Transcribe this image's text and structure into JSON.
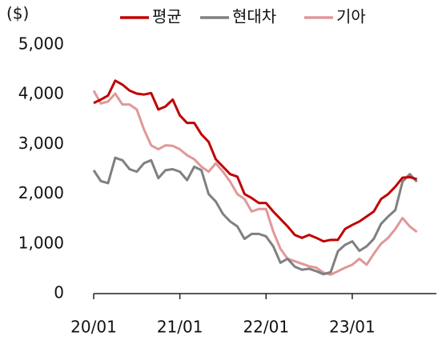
{
  "chart_data": {
    "type": "line",
    "y_label": "($)",
    "categories": [
      "20/01",
      null,
      null,
      null,
      null,
      null,
      null,
      null,
      null,
      null,
      null,
      null,
      "21/01",
      null,
      null,
      null,
      null,
      null,
      null,
      null,
      null,
      null,
      null,
      null,
      "22/01",
      null,
      null,
      null,
      null,
      null,
      null,
      null,
      null,
      null,
      null,
      null,
      "23/01",
      null,
      null,
      null,
      null,
      null,
      null,
      null,
      null,
      null
    ],
    "series": [
      {
        "name": "평균",
        "color": "#c00000",
        "values": [
          3830,
          3900,
          3980,
          4280,
          4200,
          4080,
          4020,
          4000,
          4030,
          3700,
          3760,
          3900,
          3580,
          3430,
          3430,
          3200,
          3050,
          2700,
          2550,
          2400,
          2350,
          2000,
          1920,
          1820,
          1820,
          1650,
          1500,
          1350,
          1180,
          1120,
          1180,
          1120,
          1050,
          1080,
          1080,
          1300,
          1380,
          1450,
          1550,
          1650,
          1900,
          2000,
          2150,
          2330,
          2340,
          2300
        ]
      },
      {
        "name": "현대차",
        "color": "#808080",
        "values": [
          2480,
          2260,
          2220,
          2730,
          2680,
          2500,
          2450,
          2620,
          2680,
          2320,
          2480,
          2500,
          2450,
          2280,
          2550,
          2480,
          2000,
          1850,
          1600,
          1450,
          1350,
          1100,
          1200,
          1200,
          1150,
          950,
          620,
          700,
          540,
          480,
          500,
          450,
          390,
          430,
          850,
          980,
          1050,
          860,
          950,
          1100,
          1400,
          1550,
          1680,
          2250,
          2400,
          2250
        ]
      },
      {
        "name": "기아",
        "color": "#e09898",
        "values": [
          4080,
          3820,
          3860,
          4020,
          3800,
          3800,
          3700,
          3300,
          2980,
          2900,
          2980,
          2970,
          2900,
          2780,
          2700,
          2550,
          2450,
          2620,
          2450,
          2250,
          2000,
          1900,
          1650,
          1700,
          1700,
          1250,
          900,
          700,
          650,
          600,
          550,
          520,
          420,
          380,
          450,
          520,
          580,
          700,
          580,
          800,
          1000,
          1120,
          1300,
          1520,
          1350,
          1240
        ]
      }
    ],
    "ylim": [
      0,
      5000
    ],
    "yticks": [
      0,
      {
        "value": 1000,
        "label": "1,000"
      },
      {
        "value": 2000,
        "label": "2,000"
      },
      {
        "value": 3000,
        "label": "3,000"
      },
      {
        "value": 4000,
        "label": "4,000"
      },
      {
        "value": 5000,
        "label": "5,000"
      }
    ],
    "grid": false,
    "legend": "top"
  }
}
